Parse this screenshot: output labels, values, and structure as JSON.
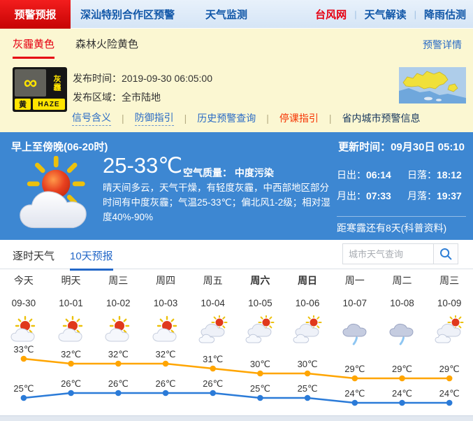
{
  "ui": {
    "separator": "|"
  },
  "top_nav": {
    "active_tab": "预警预报",
    "links": [
      "深汕特别合作区预警",
      "天气监测"
    ],
    "right_links": [
      "台风网",
      "天气解读",
      "降雨估测"
    ]
  },
  "alert": {
    "tabs": [
      {
        "label": "灰霾黄色"
      },
      {
        "label": "森林火险黄色"
      }
    ],
    "detail_link": "预警详情",
    "badge": {
      "symbol": "∞",
      "type_cn": "灰霾",
      "level": "黄",
      "type_en": "HAZE"
    },
    "publish_time_label": "发布时间：",
    "publish_time": "2019-09-30 06:05:00",
    "publish_area_label": "发布区域：",
    "publish_area": "全市陆地",
    "links": [
      {
        "label": "信号含义"
      },
      {
        "label": "防御指引"
      },
      {
        "label": "历史预警查询"
      },
      {
        "label": "停课指引"
      },
      {
        "label": "省内城市预警信息"
      }
    ]
  },
  "current": {
    "period": "早上至傍晚(06-20时)",
    "update_time": "更新时间：09月30日 05:10",
    "temp_range": "25-33℃",
    "air_quality_label": "空气质量：",
    "air_quality": "中度污染",
    "description": "晴天间多云，天气干燥，有轻度灰霾，中西部地区部分时间有中度灰霾；气温25-33℃；偏北风1-2级；相对湿度40%-90%",
    "sun_moon": [
      {
        "label": "日出：",
        "value": "06:14"
      },
      {
        "label": "日落：",
        "value": "18:12"
      },
      {
        "label": "月出：",
        "value": "07:33"
      },
      {
        "label": "月落：",
        "value": "19:37"
      }
    ],
    "solar_term_note": "距寒露还有8天(科普资料)"
  },
  "forecast": {
    "tabs": [
      {
        "label": "逐时天气",
        "active": false
      },
      {
        "label": "10天预报",
        "active": true
      }
    ],
    "search_placeholder": "城市天气查询",
    "days": [
      {
        "name": "今天",
        "date": "09-30",
        "icon": "sun-cloud",
        "bold": false
      },
      {
        "name": "明天",
        "date": "10-01",
        "icon": "sun-cloud",
        "bold": false
      },
      {
        "name": "周三",
        "date": "10-02",
        "icon": "sun-cloud",
        "bold": false
      },
      {
        "name": "周四",
        "date": "10-03",
        "icon": "sun-cloud",
        "bold": false
      },
      {
        "name": "周五",
        "date": "10-04",
        "icon": "cloud-sun",
        "bold": false
      },
      {
        "name": "周六",
        "date": "10-05",
        "icon": "cloud-sun",
        "bold": true
      },
      {
        "name": "周日",
        "date": "10-06",
        "icon": "cloud-sun",
        "bold": true
      },
      {
        "name": "周一",
        "date": "10-07",
        "icon": "rain",
        "bold": false
      },
      {
        "name": "周二",
        "date": "10-08",
        "icon": "rain",
        "bold": false
      },
      {
        "name": "周三",
        "date": "10-09",
        "icon": "cloud-sun",
        "bold": false
      }
    ]
  },
  "chart_data": {
    "type": "line",
    "categories": [
      "09-30",
      "10-01",
      "10-02",
      "10-03",
      "10-04",
      "10-05",
      "10-06",
      "10-07",
      "10-08",
      "10-09"
    ],
    "series": [
      {
        "name": "最高气温",
        "color": "#ffa500",
        "values": [
          33,
          32,
          32,
          32,
          31,
          30,
          30,
          29,
          29,
          29
        ]
      },
      {
        "name": "最低气温",
        "color": "#2b7bd8",
        "values": [
          25,
          26,
          26,
          26,
          26,
          25,
          25,
          24,
          24,
          24
        ]
      }
    ],
    "unit": "℃",
    "ylim": [
      23,
      34
    ],
    "grid": false,
    "legend": "none"
  },
  "colors": {
    "accent_red": "#e60012",
    "accent_blue": "#2468c8",
    "panel_blue": "#3d87d2",
    "alert_yellow_bg": "#fbf7d2",
    "high_line": "#ffa500",
    "low_line": "#2b7bd8"
  }
}
